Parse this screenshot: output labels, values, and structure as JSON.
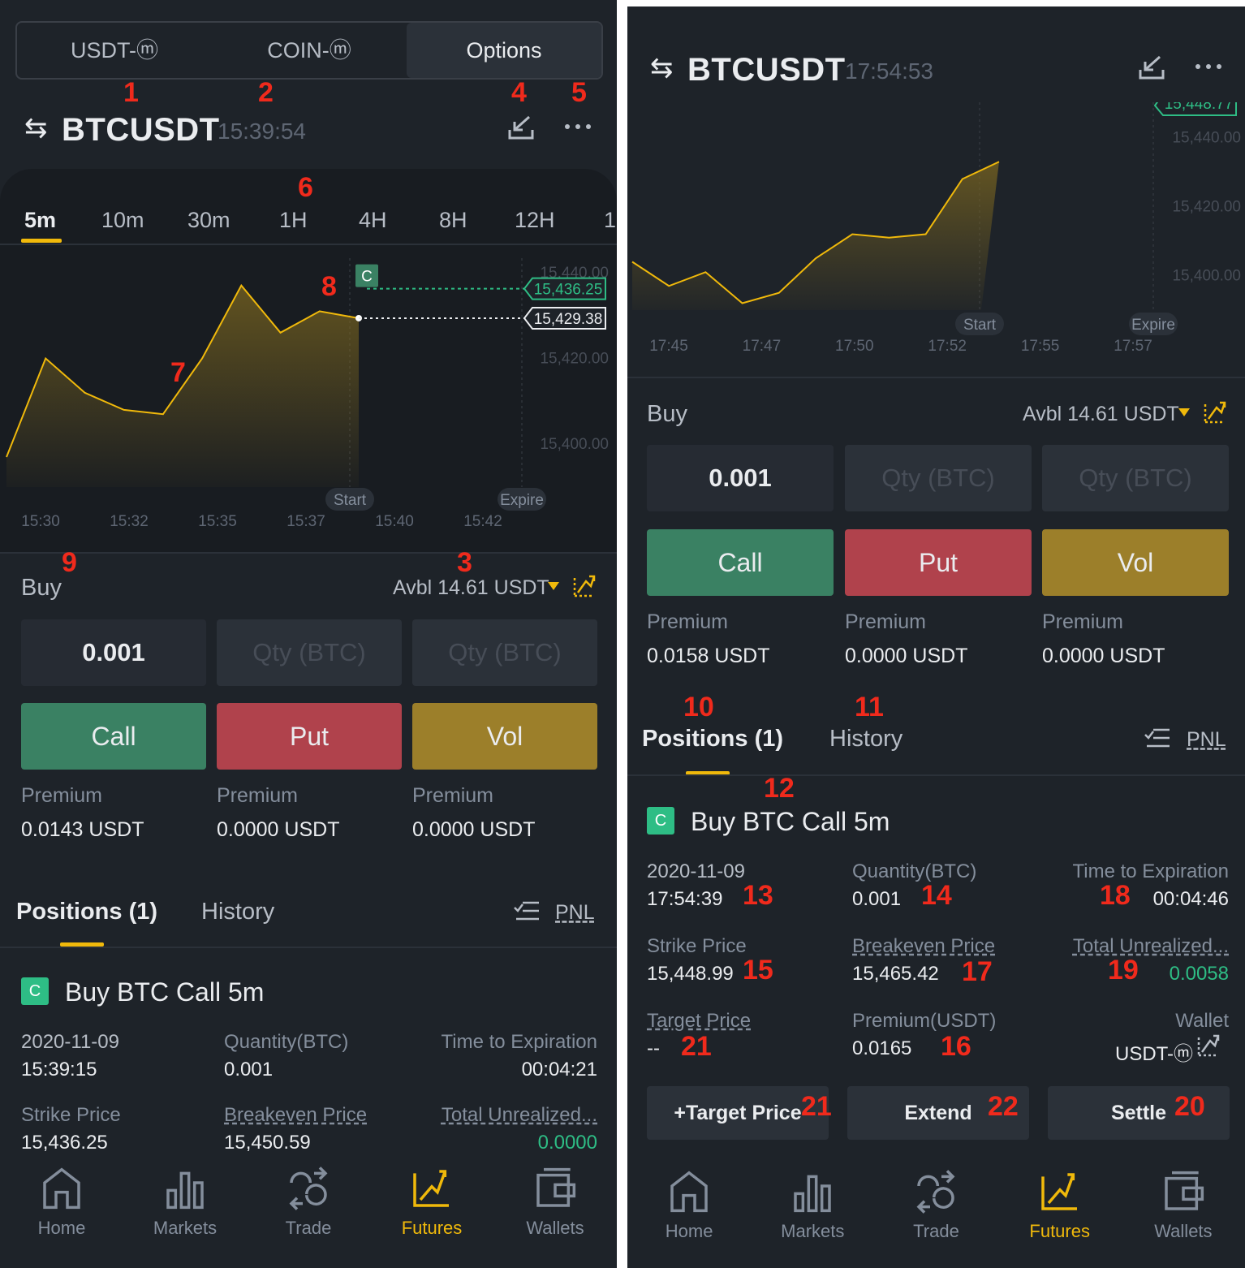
{
  "left": {
    "tabs": [
      "USDT-ⓜ",
      "COIN-ⓜ",
      "Options"
    ],
    "active_tab": "Options",
    "symbol": "BTCUSDT",
    "time": "15:39:54",
    "timeframes": [
      "5m",
      "10m",
      "30m",
      "1H",
      "4H",
      "8H",
      "12H",
      "1"
    ],
    "active_timeframe": "5m",
    "chart_data": {
      "type": "area",
      "x": [
        0,
        1,
        2,
        3,
        4,
        5,
        6,
        7,
        8,
        9
      ],
      "values": [
        15397,
        15420,
        15412,
        15408,
        15407,
        15420,
        15437,
        15426,
        15431,
        15429.38
      ],
      "x_ticks": [
        "15:30",
        "15:32",
        "15:35",
        "15:37",
        "15:40",
        "15:42"
      ],
      "y_ticks": [
        "15,440.00",
        "15,420.00",
        "15,400.00"
      ],
      "ylim": [
        15390,
        15443
      ],
      "strike_tag": "15,436.25",
      "current_tag": "15,429.38",
      "badge": "C",
      "start_label": "Start",
      "expire_label": "Expire"
    },
    "buy_label": "Buy",
    "avbl": "Avbl 14.61 USDT",
    "qty_value": "0.001",
    "qty_placeholder": "Qty (BTC)",
    "buttons": {
      "call": "Call",
      "put": "Put",
      "vol": "Vol"
    },
    "premium_label": "Premium",
    "premiums": [
      "0.0143 USDT",
      "0.0000 USDT",
      "0.0000 USDT"
    ],
    "positions_tab": "Positions (1)",
    "history_tab": "History",
    "pnl": "PNL",
    "position": {
      "badge": "C",
      "title": "Buy BTC Call 5m",
      "date": "2020-11-09",
      "time": "15:39:15",
      "qty_label": "Quantity(BTC)",
      "qty": "0.001",
      "tte_label": "Time to Expiration",
      "tte": "00:04:21",
      "strike_label": "Strike Price",
      "strike": "15,436.25",
      "be_label": "Breakeven Price",
      "be": "15,450.59",
      "unreal_label": "Total Unrealized...",
      "unreal": "0.0000"
    },
    "annotations": [
      "1",
      "2",
      "3",
      "4",
      "5",
      "6",
      "7",
      "8",
      "9"
    ]
  },
  "right": {
    "symbol": "BTCUSDT",
    "time": "17:54:53",
    "chart_data": {
      "type": "area",
      "x": [
        0,
        1,
        2,
        3,
        4,
        5,
        6,
        7,
        8,
        9,
        10
      ],
      "values": [
        15404,
        15397,
        15401,
        15392,
        15395,
        15405,
        15412,
        15411,
        15412,
        15428,
        15433
      ],
      "x_ticks": [
        "17:45",
        "17:47",
        "17:50",
        "17:52",
        "17:55",
        "17:57"
      ],
      "y_ticks": [
        "15,440.00",
        "15,420.00",
        "15,400.00"
      ],
      "ylim": [
        15390,
        15446
      ],
      "top_tag": "15,448.77",
      "start_label": "Start",
      "expire_label": "Expire"
    },
    "buy_label": "Buy",
    "avbl": "Avbl 14.61 USDT",
    "qty_value": "0.001",
    "qty_placeholder": "Qty (BTC)",
    "buttons": {
      "call": "Call",
      "put": "Put",
      "vol": "Vol"
    },
    "premium_label": "Premium",
    "premiums": [
      "0.0158 USDT",
      "0.0000 USDT",
      "0.0000 USDT"
    ],
    "positions_tab": "Positions (1)",
    "history_tab": "History",
    "pnl": "PNL",
    "position": {
      "badge": "C",
      "title": "Buy BTC Call 5m",
      "date": "2020-11-09",
      "time": "17:54:39",
      "qty_label": "Quantity(BTC)",
      "qty": "0.001",
      "tte_label": "Time to Expiration",
      "tte": "00:04:46",
      "strike_label": "Strike Price",
      "strike": "15,448.99",
      "be_label": "Breakeven Price",
      "be": "15,465.42",
      "unreal_label": "Total Unrealized...",
      "unreal": "0.0058",
      "target_label": "Target Price",
      "target": "--",
      "premium_label": "Premium(USDT)",
      "premium": "0.0165",
      "wallet_label": "Wallet",
      "wallet": "USDT-ⓜ"
    },
    "actions": {
      "target": "+Target Price",
      "extend": "Extend",
      "settle": "Settle"
    },
    "annotations": [
      "10",
      "11",
      "12",
      "13",
      "14",
      "15",
      "16",
      "17",
      "18",
      "19",
      "20",
      "21",
      "21",
      "22"
    ]
  },
  "nav": [
    "Home",
    "Markets",
    "Trade",
    "Futures",
    "Wallets"
  ],
  "nav_active": "Futures",
  "colors": {
    "accent": "#f0b90b",
    "call": "#3a8163",
    "put": "#b0424c",
    "vol": "#9c7f2a",
    "positive": "#2ebd85",
    "annotation": "#f02a1c"
  }
}
